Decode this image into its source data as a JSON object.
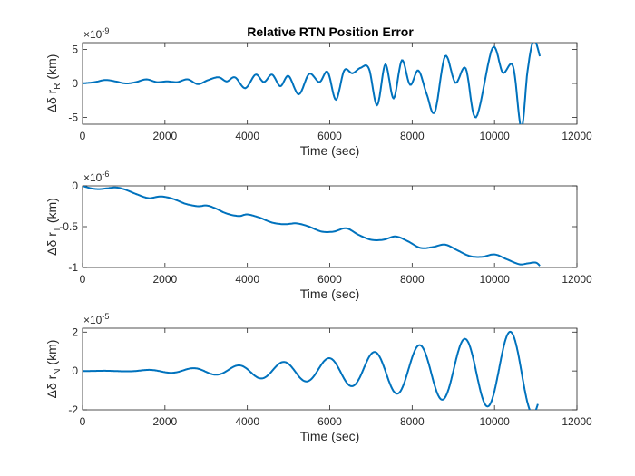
{
  "figure": {
    "title": "Relative RTN Position Error"
  },
  "chart_data": [
    {
      "type": "line",
      "title": "Relative RTN Position Error",
      "xlabel": "Time (sec)",
      "ylabel": "Δδ r_R (km)",
      "ylabel_base": "Δδ r",
      "ylabel_sub": "R",
      "ylabel_unit": "(km)",
      "exponent_prefix": "×10",
      "exponent_power": "-9",
      "xlim": [
        0,
        12000
      ],
      "ylim": [
        -6,
        6
      ],
      "xticks": [
        0,
        2000,
        4000,
        6000,
        8000,
        10000,
        12000
      ],
      "xtick_labels": [
        "0",
        "2000",
        "4000",
        "6000",
        "8000",
        "10000",
        "12000"
      ],
      "yticks": [
        -5,
        0,
        5
      ],
      "ytick_labels": [
        "-5",
        "0",
        "5"
      ],
      "color": "#0072BD",
      "series": [
        {
          "x": [
            0,
            300,
            550,
            800,
            1050,
            1300,
            1550,
            1800,
            2050,
            2300,
            2550,
            2800,
            3050,
            3300,
            3500,
            3700,
            3950,
            4200,
            4400,
            4600,
            4800,
            5000,
            5250,
            5500,
            5750,
            5950,
            6150,
            6350,
            6550,
            6750,
            6950,
            7150,
            7350,
            7550,
            7750,
            7950,
            8150,
            8350,
            8550,
            8800,
            9050,
            9300,
            9550,
            9950,
            10200,
            10450,
            10650,
            10800,
            10950,
            11100
          ],
          "y": [
            0,
            0.2,
            0.5,
            0.3,
            0,
            0.2,
            0.6,
            0.2,
            0.3,
            0.2,
            0.6,
            -0.1,
            0.5,
            0.9,
            0.3,
            0.9,
            -0.7,
            1.3,
            0.2,
            1.3,
            -0.4,
            1.1,
            -1.6,
            1.4,
            0.2,
            1.7,
            -2.4,
            1.9,
            1.5,
            2.3,
            2.2,
            -3.2,
            2.8,
            -2.2,
            3.4,
            -0.2,
            1.9,
            -1.5,
            -4.2,
            4.0,
            0.1,
            2.2,
            -5.0,
            5.2,
            1.6,
            2.5,
            -6.6,
            1.8,
            6.4,
            4.0
          ]
        }
      ]
    },
    {
      "type": "line",
      "xlabel": "Time (sec)",
      "ylabel": "Δδ r_T (km)",
      "ylabel_base": "Δδ r",
      "ylabel_sub": "T",
      "ylabel_unit": "(km)",
      "exponent_prefix": "×10",
      "exponent_power": "-6",
      "xlim": [
        0,
        12000
      ],
      "ylim": [
        -1,
        0
      ],
      "xticks": [
        0,
        2000,
        4000,
        6000,
        8000,
        10000,
        12000
      ],
      "xtick_labels": [
        "0",
        "2000",
        "4000",
        "6000",
        "8000",
        "10000",
        "12000"
      ],
      "yticks": [
        -1,
        -0.5,
        0
      ],
      "ytick_labels": [
        "-1",
        "-0.5",
        "0"
      ],
      "color": "#0072BD",
      "series": [
        {
          "x": [
            0,
            200,
            400,
            600,
            800,
            1000,
            1300,
            1600,
            1900,
            2200,
            2500,
            2800,
            3000,
            3200,
            3500,
            3800,
            4000,
            4300,
            4600,
            4900,
            5200,
            5500,
            5800,
            6100,
            6400,
            6700,
            7000,
            7300,
            7600,
            7900,
            8200,
            8500,
            8800,
            9100,
            9400,
            9700,
            10000,
            10300,
            10600,
            10800,
            11000,
            11100
          ],
          "y": [
            0,
            -0.03,
            -0.04,
            -0.03,
            -0.02,
            -0.04,
            -0.1,
            -0.15,
            -0.13,
            -0.16,
            -0.22,
            -0.25,
            -0.24,
            -0.27,
            -0.34,
            -0.37,
            -0.35,
            -0.39,
            -0.45,
            -0.47,
            -0.46,
            -0.5,
            -0.56,
            -0.56,
            -0.52,
            -0.6,
            -0.66,
            -0.66,
            -0.62,
            -0.68,
            -0.76,
            -0.75,
            -0.72,
            -0.79,
            -0.86,
            -0.87,
            -0.84,
            -0.9,
            -0.96,
            -0.95,
            -0.94,
            -0.98
          ]
        }
      ]
    },
    {
      "type": "line",
      "xlabel": "Time (sec)",
      "ylabel": "Δδ r_N (km)",
      "ylabel_base": "Δδ r",
      "ylabel_sub": "N",
      "ylabel_unit": "(km)",
      "exponent_prefix": "×10",
      "exponent_power": "-5",
      "xlim": [
        0,
        12000
      ],
      "ylim": [
        -2,
        2.2
      ],
      "xticks": [
        0,
        2000,
        4000,
        6000,
        8000,
        10000,
        12000
      ],
      "xtick_labels": [
        "0",
        "2000",
        "4000",
        "6000",
        "8000",
        "10000",
        "12000"
      ],
      "yticks": [
        -2,
        0,
        2
      ],
      "ytick_labels": [
        "-2",
        "0",
        "2"
      ],
      "color": "#0072BD",
      "amplitude_model": {
        "period": 1100,
        "phase_offset": 200,
        "growth": 1.9,
        "scale": 2.2
      },
      "series": [
        {
          "x": [
            0,
            1100,
            2200,
            3300,
            4400,
            5500,
            6600,
            7700,
            8800,
            9900,
            11050
          ],
          "y": [
            0,
            0.02,
            0.1,
            0.2,
            0.4,
            0.55,
            0.8,
            1.2,
            1.5,
            1.85,
            2.25
          ]
        }
      ]
    }
  ]
}
